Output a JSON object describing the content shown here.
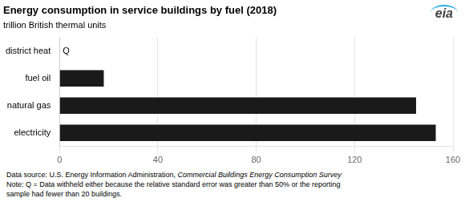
{
  "chart_data": {
    "type": "bar",
    "orientation": "horizontal",
    "title": "Energy consumption in service buildings by fuel (2018)",
    "subtitle": "trillion British thermal units",
    "categories": [
      "district heat",
      "fuel oil",
      "natural gas",
      "electricity"
    ],
    "values": [
      0,
      18,
      145,
      153
    ],
    "color": "#1a1a1a",
    "xlim": [
      0,
      160
    ],
    "xticks": [
      0,
      40,
      80,
      120,
      160
    ],
    "grid": true,
    "annotations": [
      {
        "text": "Q",
        "category": "district heat"
      }
    ],
    "logo": "eia",
    "footnotes": [
      [
        "Data source: U.S. Energy Information Administration, ",
        "Commercial Buildings Energy Consumption Survey"
      ],
      [
        "Note: Q = Data withheld either because the relative standard error was greater than 50% or the reporting"
      ],
      [
        "sample had fewer than 20 buildings."
      ]
    ]
  }
}
